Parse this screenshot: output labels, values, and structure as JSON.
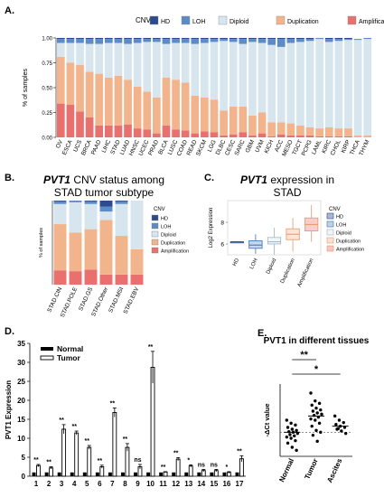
{
  "colors": {
    "HD": "#2b4c8c",
    "LOH": "#5b8cc6",
    "Diploid": "#d7e5ef",
    "Duplication": "#f2b48c",
    "Amplification": "#e8716f",
    "normal_bar": "#000000",
    "tumor_bar": "#ffffff",
    "tumor_edge": "#000000"
  },
  "panels": {
    "A": "A.",
    "B": "B.",
    "C": "C.",
    "D": "D.",
    "E": "E."
  },
  "chart_data": [
    {
      "panel": "A",
      "type": "bar",
      "stacked": true,
      "legend_title": "CNV",
      "legend_position": "top",
      "ylabel": "% of samples",
      "ylim": [
        0,
        1
      ],
      "yticks": [
        "0.00",
        "0.25",
        "0.50",
        "0.75",
        "1.00"
      ],
      "categories": [
        "OV",
        "ESCA",
        "UCS",
        "BRCA",
        "PAAD",
        "LIHC",
        "STAD",
        "LUAD",
        "HNSC",
        "UCEC",
        "PRAD",
        "BLCA",
        "LUSC",
        "COAD",
        "READ",
        "SKCM",
        "LGG",
        "DLBC",
        "CESC",
        "SARC",
        "GBM",
        "UVM",
        "KICH",
        "ACC",
        "MESO",
        "TGCT",
        "PCPG",
        "LAML",
        "KIRC",
        "CHOL",
        "KIRP",
        "THCA",
        "THYM"
      ],
      "series": [
        {
          "name": "HD",
          "values": [
            0.01,
            0.01,
            0.01,
            0.01,
            0.01,
            0.01,
            0.01,
            0.01,
            0.01,
            0.01,
            0.01,
            0.01,
            0.01,
            0.01,
            0.01,
            0.01,
            0.01,
            0.01,
            0.01,
            0.01,
            0.01,
            0.01,
            0.01,
            0.01,
            0.01,
            0.01,
            0.01,
            0.0,
            0.01,
            0.01,
            0.01,
            0.0,
            0.0
          ]
        },
        {
          "name": "LOH",
          "values": [
            0.04,
            0.04,
            0.04,
            0.05,
            0.05,
            0.04,
            0.04,
            0.05,
            0.04,
            0.03,
            0.03,
            0.05,
            0.04,
            0.04,
            0.05,
            0.04,
            0.03,
            0.02,
            0.03,
            0.05,
            0.03,
            0.04,
            0.06,
            0.08,
            0.04,
            0.03,
            0.02,
            0.01,
            0.03,
            0.02,
            0.01,
            0.01,
            0.01
          ]
        },
        {
          "name": "Diploid",
          "values": [
            0.14,
            0.2,
            0.22,
            0.28,
            0.3,
            0.35,
            0.33,
            0.36,
            0.44,
            0.5,
            0.56,
            0.34,
            0.37,
            0.4,
            0.52,
            0.55,
            0.58,
            0.7,
            0.65,
            0.63,
            0.74,
            0.7,
            0.78,
            0.76,
            0.81,
            0.84,
            0.87,
            0.9,
            0.86,
            0.88,
            0.89,
            0.96,
            0.97
          ]
        },
        {
          "name": "Duplication",
          "values": [
            0.47,
            0.42,
            0.47,
            0.46,
            0.52,
            0.48,
            0.5,
            0.45,
            0.42,
            0.38,
            0.36,
            0.48,
            0.5,
            0.48,
            0.38,
            0.34,
            0.33,
            0.25,
            0.28,
            0.26,
            0.2,
            0.21,
            0.14,
            0.12,
            0.12,
            0.1,
            0.08,
            0.08,
            0.09,
            0.08,
            0.08,
            0.02,
            0.02
          ]
        },
        {
          "name": "Amplification",
          "values": [
            0.34,
            0.33,
            0.26,
            0.2,
            0.12,
            0.12,
            0.12,
            0.13,
            0.09,
            0.08,
            0.04,
            0.12,
            0.08,
            0.07,
            0.04,
            0.06,
            0.05,
            0.02,
            0.03,
            0.05,
            0.02,
            0.04,
            0.01,
            0.03,
            0.02,
            0.02,
            0.02,
            0.01,
            0.01,
            0.01,
            0.01,
            0.0,
            0.0
          ]
        }
      ]
    },
    {
      "panel": "B",
      "type": "bar",
      "stacked": true,
      "title": "PVT1 CNV status among STAD tumor subtype",
      "title_italic_word": "PVT1",
      "title_rest": " CNV status among",
      "title_line2": "STAD tumor subtype",
      "legend_title": "CNV",
      "legend_position": "right",
      "ylabel": "% of samples",
      "ylim": [
        0,
        1
      ],
      "categories": [
        "STAD.CIN",
        "STAD.POLE",
        "STAD.GS",
        "STAD.Other",
        "STAD.MSI",
        "STAD.EBV"
      ],
      "series": [
        {
          "name": "HD",
          "values": [
            0.01,
            0.0,
            0.01,
            0.07,
            0.01,
            0.0
          ]
        },
        {
          "name": "LOH",
          "values": [
            0.03,
            0.02,
            0.03,
            0.06,
            0.03,
            0.0
          ]
        },
        {
          "name": "Diploid",
          "values": [
            0.24,
            0.36,
            0.3,
            0.1,
            0.38,
            0.58
          ]
        },
        {
          "name": "Duplication",
          "values": [
            0.55,
            0.46,
            0.48,
            0.65,
            0.46,
            0.3
          ]
        },
        {
          "name": "Amplification",
          "values": [
            0.17,
            0.16,
            0.18,
            0.12,
            0.12,
            0.12
          ]
        }
      ]
    },
    {
      "panel": "C",
      "type": "box",
      "title": "PVT1 expression in STAD",
      "title_italic_word": "PVT1",
      "title_rest": " expression in",
      "title_line2": "STAD",
      "ylabel": "Log2 Expression",
      "ylim": [
        5,
        10
      ],
      "yticks": [
        "6",
        "8"
      ],
      "legend_title": "CNV",
      "legend_position": "right",
      "categories": [
        "HD",
        "LOH",
        "Diploid",
        "Duplication",
        "Amplification"
      ],
      "series": [
        {
          "name": "HD",
          "min": 6.2,
          "q1": 6.2,
          "median": 6.2,
          "q3": 6.2,
          "max": 6.2
        },
        {
          "name": "LOH",
          "min": 5.1,
          "q1": 5.6,
          "median": 5.9,
          "q3": 6.3,
          "max": 6.9
        },
        {
          "name": "Diploid",
          "min": 5.0,
          "q1": 6.0,
          "median": 6.2,
          "q3": 6.6,
          "max": 7.5
        },
        {
          "name": "Duplication",
          "min": 5.3,
          "q1": 6.4,
          "median": 6.9,
          "q3": 7.4,
          "max": 8.4
        },
        {
          "name": "Amplification",
          "min": 6.2,
          "q1": 7.2,
          "median": 7.8,
          "q3": 8.4,
          "max": 9.6
        }
      ]
    },
    {
      "panel": "D",
      "type": "bar",
      "ylabel": "PVT1 Expression",
      "ylim": [
        0,
        35
      ],
      "yticks": [
        0,
        5,
        10,
        15,
        20,
        25,
        30,
        35
      ],
      "legend_position": "top-left",
      "categories": [
        "1",
        "2",
        "3",
        "4",
        "5",
        "6",
        "7",
        "8",
        "9",
        "10",
        "11",
        "12",
        "13",
        "14",
        "15",
        "16",
        "17"
      ],
      "series": [
        {
          "name": "Normal",
          "values": [
            1,
            1,
            1,
            1,
            1,
            1,
            1,
            1,
            1,
            1,
            1,
            1,
            1,
            1,
            1,
            1,
            1
          ],
          "errors": [
            0.1,
            0.1,
            0.1,
            0.1,
            0.1,
            0.1,
            0.1,
            0.1,
            0.1,
            0.1,
            0.1,
            0.1,
            0.1,
            0.1,
            0.1,
            0.1,
            0.1
          ]
        },
        {
          "name": "Tumor",
          "values": [
            2.8,
            2.2,
            12.4,
            11.4,
            7.6,
            2.5,
            16.8,
            7.6,
            2.5,
            28.7,
            1.1,
            4.5,
            2.7,
            1.5,
            1.5,
            1.0,
            4.6
          ],
          "errors": [
            0.3,
            0.3,
            1.2,
            0.5,
            0.5,
            0.4,
            1.2,
            1.0,
            0.6,
            4.2,
            0.1,
            0.4,
            0.3,
            0.3,
            0.3,
            0.2,
            0.8
          ]
        }
      ],
      "significance": [
        "**",
        "**",
        "**",
        "**",
        "**",
        "**",
        "**",
        "**",
        "ns",
        "**",
        "**",
        "**",
        "*",
        "ns",
        "ns",
        "*",
        "**"
      ]
    },
    {
      "panel": "E",
      "type": "scatter",
      "title": "PVT1 in different tissues",
      "ylabel": "-ΔCt value",
      "ylim": [
        -4,
        8
      ],
      "categories": [
        "Normal",
        "Tumor",
        "Ascites"
      ],
      "series": [
        {
          "name": "Normal",
          "mean": 0.0,
          "points": [
            2.0,
            1.5,
            1.2,
            0.8,
            0.5,
            0.3,
            0.1,
            0.0,
            -0.2,
            -0.4,
            -0.6,
            -0.8,
            -1.0,
            -1.4,
            -1.8,
            -2.5,
            -3.0
          ]
        },
        {
          "name": "Tumor",
          "mean": 2.7,
          "points": [
            6.5,
            5.2,
            4.8,
            4.5,
            4.0,
            3.7,
            3.5,
            3.2,
            3.0,
            2.8,
            2.5,
            2.2,
            2.0,
            1.5,
            1.0,
            0.3,
            0.0,
            -0.5,
            -1.5
          ]
        },
        {
          "name": "Ascites",
          "mean": 1.0,
          "points": [
            2.7,
            2.0,
            1.6,
            1.3,
            1.0,
            0.8,
            0.5,
            0.2,
            -0.2,
            0.6
          ]
        }
      ],
      "significance": [
        {
          "pair": [
            "Normal",
            "Tumor"
          ],
          "label": "**"
        },
        {
          "pair": [
            "Normal",
            "Ascites"
          ],
          "label": "*"
        }
      ]
    }
  ]
}
